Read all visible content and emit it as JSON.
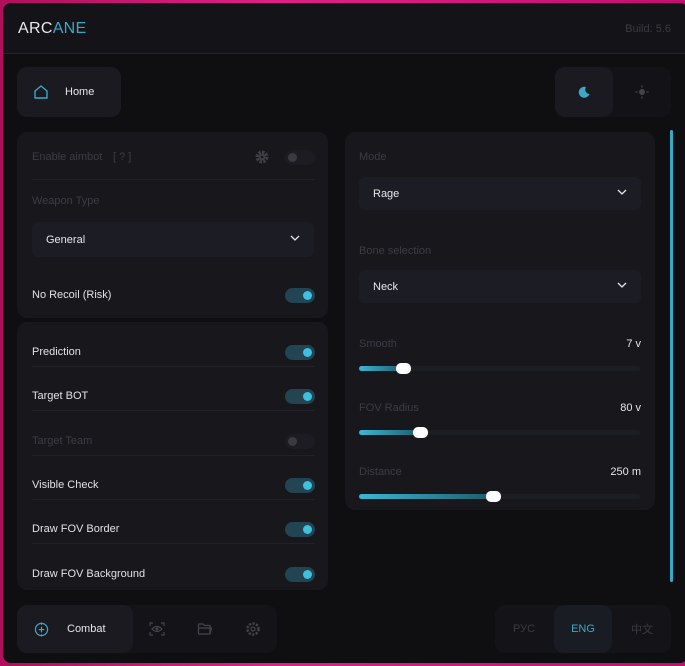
{
  "header": {
    "logo_a": "ARC",
    "logo_b": "ANE",
    "build": "Build: 5.6"
  },
  "nav": {
    "home": "Home",
    "theme_dark": "moon-icon",
    "theme_light": "sun-icon"
  },
  "aimbot": {
    "enable_label": "Enable aimbot",
    "help": "[ ? ]",
    "enabled": false,
    "weapon_type_label": "Weapon Type",
    "weapon_type": "General",
    "no_recoil_label": "No Recoil (Risk)",
    "no_recoil": true
  },
  "options": [
    {
      "label": "Prediction",
      "on": true
    },
    {
      "label": "Target BOT",
      "on": true
    },
    {
      "label": "Target Team",
      "on": false
    },
    {
      "label": "Visible Check",
      "on": true
    },
    {
      "label": "Draw FOV Border",
      "on": true
    },
    {
      "label": "Draw FOV Background",
      "on": true
    }
  ],
  "right": {
    "mode_label": "Mode",
    "mode": "Rage",
    "bone_label": "Bone selection",
    "bone": "Neck",
    "sliders": [
      {
        "label": "Smooth",
        "value": "7 v",
        "level": 0.16
      },
      {
        "label": "FOV Radius",
        "value": "80 v",
        "level": 0.22
      },
      {
        "label": "Distance",
        "value": "250 m",
        "level": 0.48
      }
    ]
  },
  "footer": {
    "combat": "Combat",
    "langs": [
      "РУС",
      "ENG",
      "中文"
    ],
    "active_lang": "ENG"
  },
  "colors": {
    "accent": "#3aa9c6",
    "bg": "#0f0f12",
    "card": "#17171c"
  }
}
